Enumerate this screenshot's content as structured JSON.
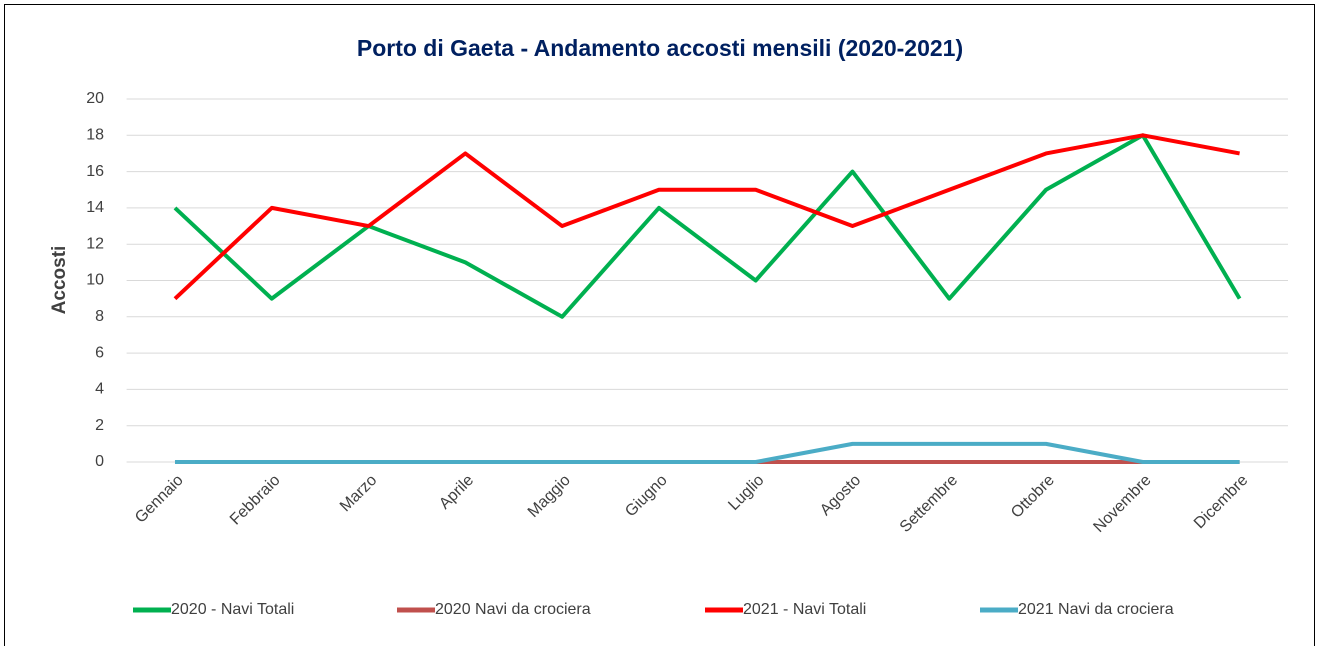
{
  "chart_data": {
    "type": "line",
    "title": "Porto di Gaeta - Andamento accosti mensili (2020-2021)",
    "ylabel": "Accosti",
    "categories": [
      "Gennaio",
      "Febbraio",
      "Marzo",
      "Aprile",
      "Maggio",
      "Giugno",
      "Luglio",
      "Agosto",
      "Settembre",
      "Ottobre",
      "Novembre",
      "Dicembre"
    ],
    "series": [
      {
        "name": "2020 - Navi Totali",
        "color": "#00b050",
        "values": [
          14,
          9,
          13,
          11,
          8,
          14,
          10,
          16,
          9,
          15,
          18,
          9
        ]
      },
      {
        "name": "2020 Navi da crociera",
        "color": "#c0504d",
        "values": [
          0,
          0,
          0,
          0,
          0,
          0,
          0,
          0,
          0,
          0,
          0,
          0
        ]
      },
      {
        "name": "2021 - Navi Totali",
        "color": "#ff0000",
        "values": [
          9,
          14,
          13,
          17,
          13,
          15,
          15,
          13,
          15,
          17,
          18,
          17
        ]
      },
      {
        "name": "2021 Navi da crociera",
        "color": "#4bacc6",
        "values": [
          0,
          0,
          0,
          0,
          0,
          0,
          0,
          1,
          1,
          1,
          0,
          0
        ]
      }
    ],
    "ylim": [
      0,
      20
    ],
    "yticks": [
      0,
      2,
      4,
      6,
      8,
      10,
      12,
      14,
      16,
      18,
      20
    ],
    "grid": true,
    "legend": "bottom"
  }
}
